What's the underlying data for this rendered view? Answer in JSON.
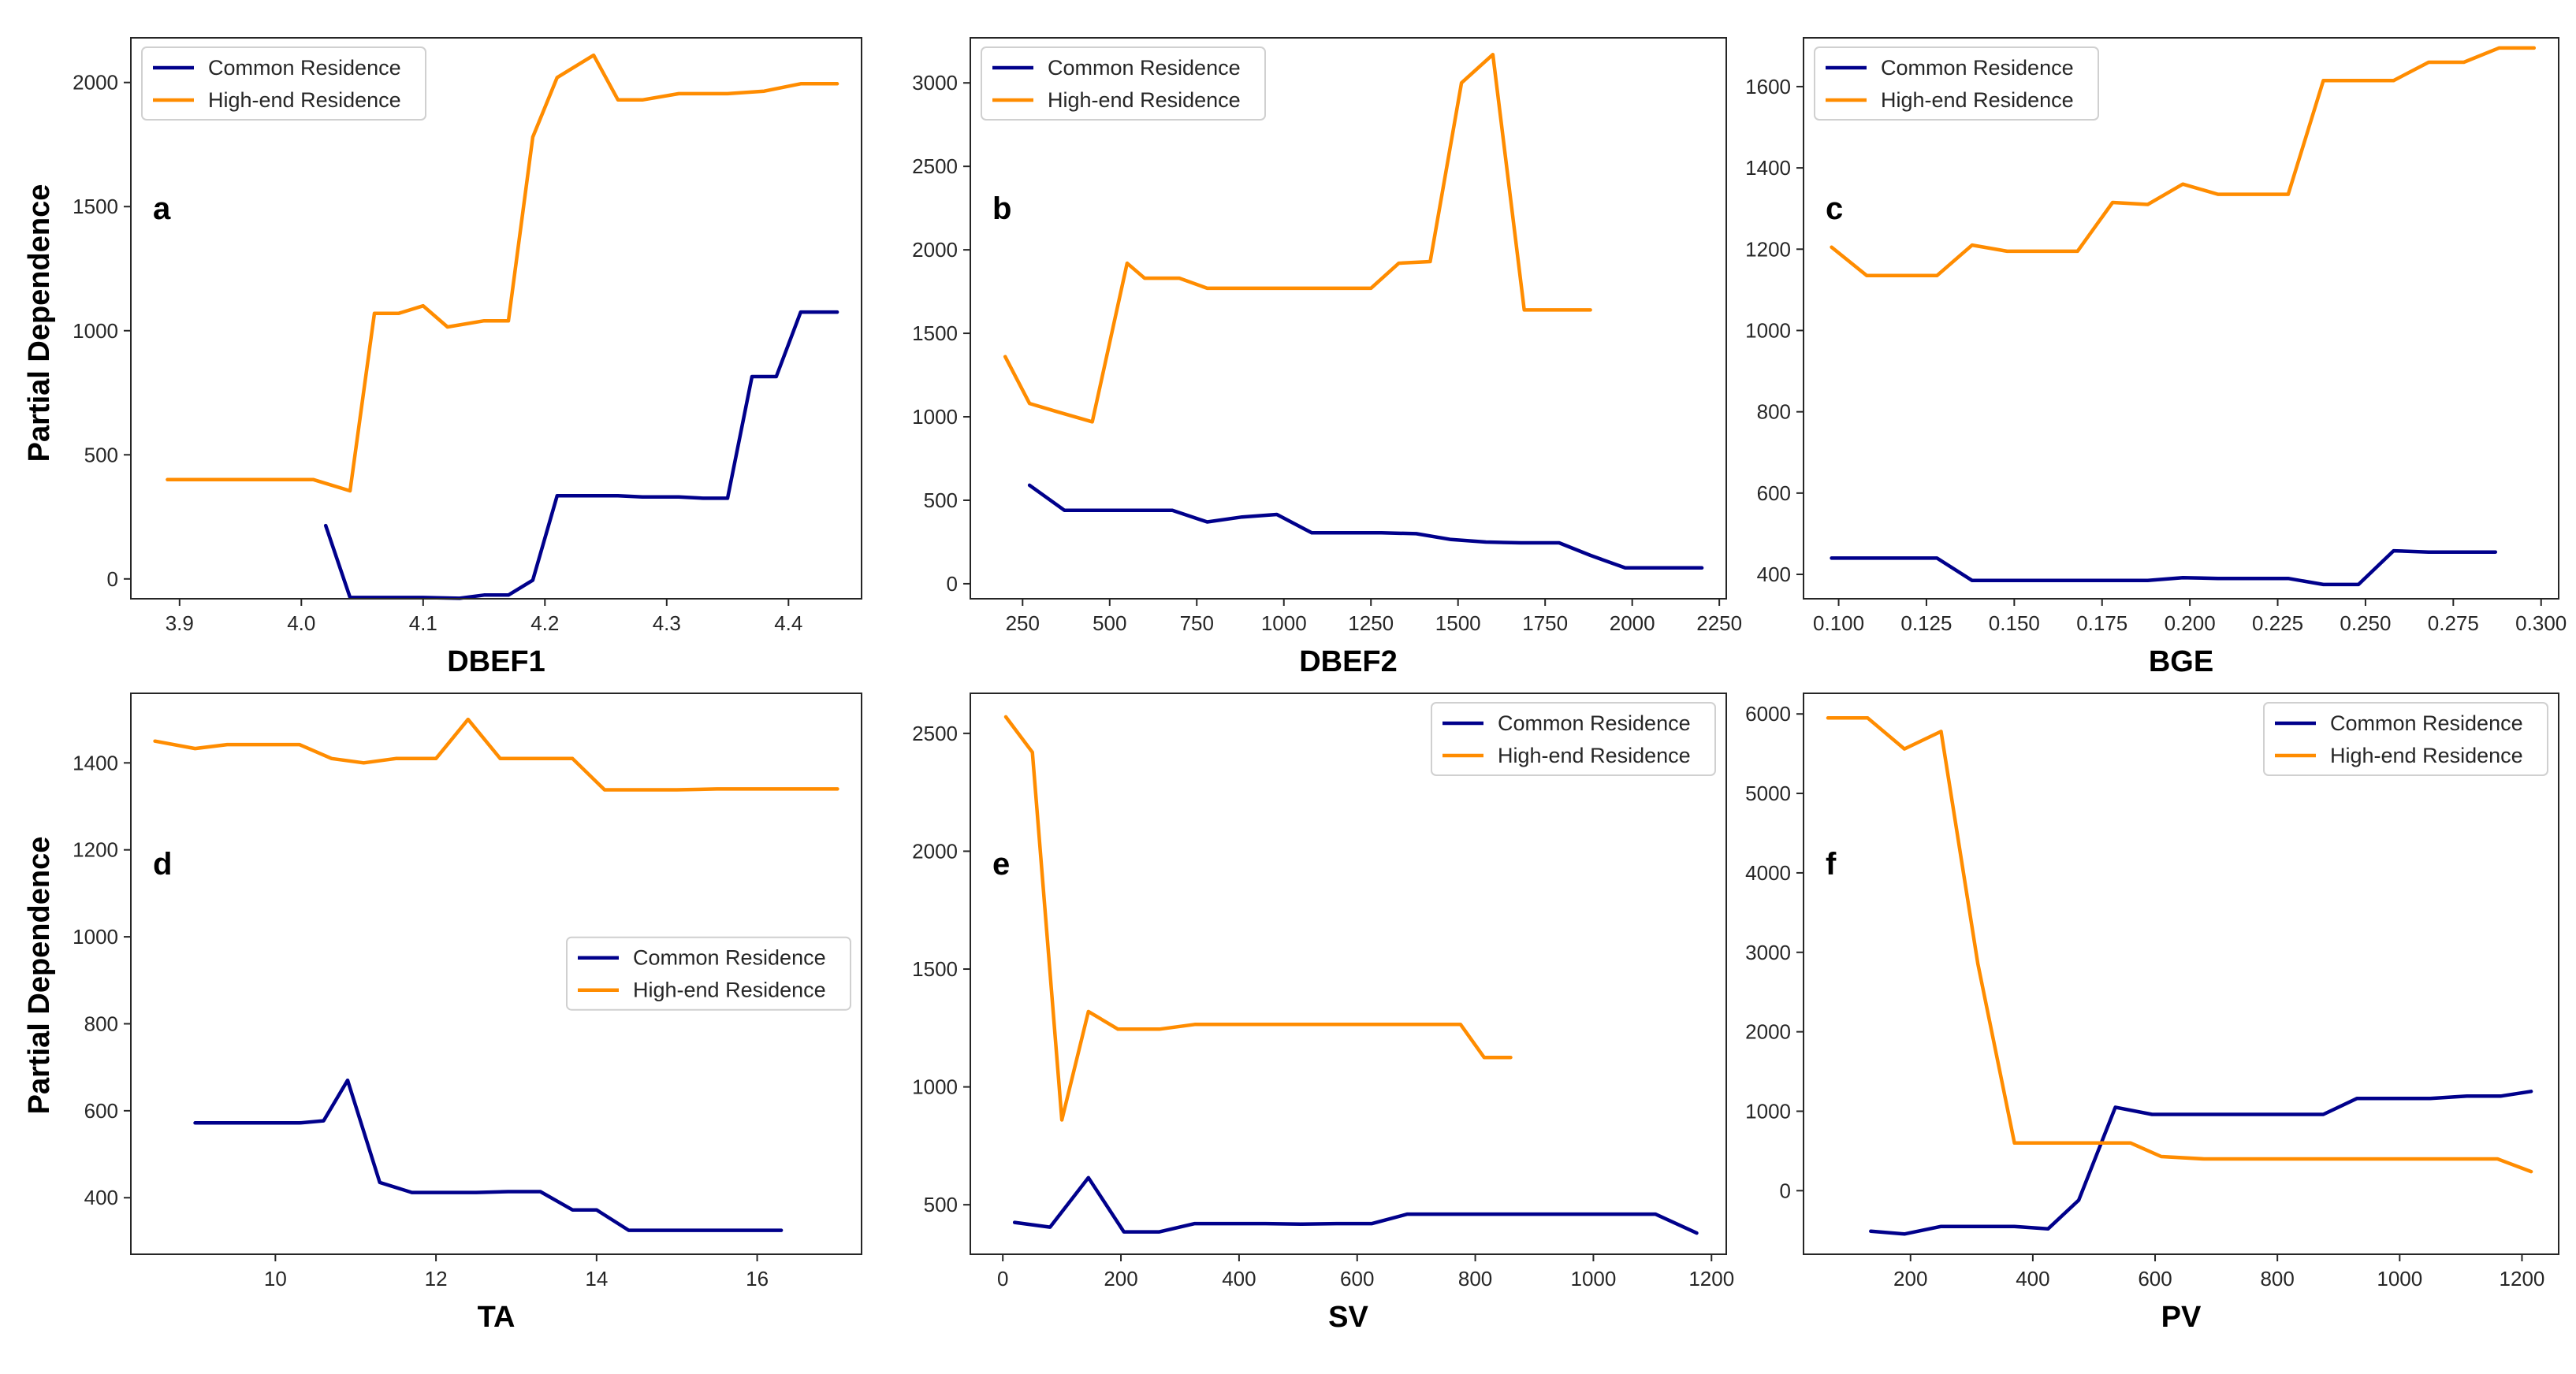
{
  "colors": {
    "common": "#00008b",
    "highend": "#ff8c00",
    "axis": "#262626"
  },
  "ylabel_text": "Partial Dependence",
  "chart_data": [
    {
      "type": "line",
      "panel": "a",
      "xlabel": "DBEF1",
      "ylabel": "Partial Dependence",
      "xlim": [
        3.86,
        4.46
      ],
      "ylim": [
        -80,
        2180
      ],
      "xticks": [
        3.9,
        4.0,
        4.1,
        4.2,
        4.3,
        4.4
      ],
      "xtick_labels": [
        "3.9",
        "4.0",
        "4.1",
        "4.2",
        "4.3",
        "4.4"
      ],
      "yticks": [
        0,
        500,
        1000,
        1500,
        2000
      ],
      "ytick_labels": [
        "0",
        "500",
        "1000",
        "1500",
        "2000"
      ],
      "legend_loc": "upper-left",
      "legend": [
        "Common Residence",
        "High-end Residence"
      ],
      "series": [
        {
          "name": "Common Residence",
          "color": "common",
          "x": [
            4.02,
            4.04,
            4.06,
            4.08,
            4.1,
            4.13,
            4.15,
            4.17,
            4.19,
            4.21,
            4.24,
            4.26,
            4.28,
            4.31,
            4.33,
            4.35,
            4.37,
            4.39,
            4.41,
            4.44
          ],
          "y": [
            215,
            -75,
            -75,
            -75,
            -75,
            -78,
            -65,
            -65,
            -5,
            335,
            335,
            335,
            330,
            330,
            325,
            325,
            815,
            815,
            1075,
            1075
          ]
        },
        {
          "name": "High-end Residence",
          "color": "highend",
          "x": [
            3.89,
            3.94,
            3.97,
            4.0,
            4.01,
            4.04,
            4.06,
            4.08,
            4.1,
            4.12,
            4.15,
            4.17,
            4.19,
            4.21,
            4.24,
            4.26,
            4.28,
            4.31,
            4.33,
            4.35,
            4.38,
            4.41,
            4.44
          ],
          "y": [
            400,
            400,
            400,
            400,
            400,
            355,
            1070,
            1070,
            1100,
            1015,
            1040,
            1040,
            1780,
            2020,
            2110,
            1930,
            1930,
            1955,
            1955,
            1955,
            1965,
            1995,
            1995
          ]
        }
      ]
    },
    {
      "type": "line",
      "panel": "b",
      "xlabel": "DBEF2",
      "ylabel": "",
      "xlim": [
        100,
        2270
      ],
      "ylim": [
        -90,
        3270
      ],
      "xticks": [
        250,
        500,
        750,
        1000,
        1250,
        1500,
        1750,
        2000,
        2250
      ],
      "xtick_labels": [
        "250",
        "500",
        "750",
        "1000",
        "1250",
        "1500",
        "1750",
        "2000",
        "2250"
      ],
      "yticks": [
        0,
        500,
        1000,
        1500,
        2000,
        2500,
        3000
      ],
      "ytick_labels": [
        "0",
        "500",
        "1000",
        "1500",
        "2000",
        "2500",
        "3000"
      ],
      "legend_loc": "upper-left",
      "legend": [
        "Common Residence",
        "High-end Residence"
      ],
      "series": [
        {
          "name": "Common Residence",
          "color": "common",
          "x": [
            270,
            370,
            450,
            550,
            650,
            680,
            780,
            880,
            980,
            1080,
            1180,
            1280,
            1380,
            1480,
            1580,
            1680,
            1790,
            1880,
            1980,
            2090,
            2200
          ],
          "y": [
            590,
            440,
            440,
            440,
            440,
            440,
            370,
            400,
            415,
            305,
            305,
            305,
            300,
            265,
            250,
            245,
            245,
            170,
            95,
            95,
            95
          ]
        },
        {
          "name": "High-end Residence",
          "color": "highend",
          "x": [
            200,
            270,
            350,
            450,
            550,
            600,
            650,
            700,
            780,
            880,
            980,
            1080,
            1180,
            1250,
            1330,
            1420,
            1510,
            1600,
            1690,
            1790,
            1880
          ],
          "y": [
            1360,
            1080,
            1030,
            970,
            1920,
            1830,
            1830,
            1830,
            1770,
            1770,
            1770,
            1770,
            1770,
            1770,
            1920,
            1930,
            3000,
            3170,
            1640,
            1640,
            1640
          ]
        }
      ]
    },
    {
      "type": "line",
      "panel": "c",
      "xlabel": "BGE",
      "ylabel": "",
      "xlim": [
        0.09,
        0.305
      ],
      "ylim": [
        340,
        1720
      ],
      "xticks": [
        0.1,
        0.125,
        0.15,
        0.175,
        0.2,
        0.225,
        0.25,
        0.275,
        0.3
      ],
      "xtick_labels": [
        "0.100",
        "0.125",
        "0.150",
        "0.175",
        "0.200",
        "0.225",
        "0.250",
        "0.275",
        "0.300"
      ],
      "yticks": [
        400,
        600,
        800,
        1000,
        1200,
        1400,
        1600
      ],
      "ytick_labels": [
        "400",
        "600",
        "800",
        "1000",
        "1200",
        "1400",
        "1600"
      ],
      "legend_loc": "upper-left",
      "legend": [
        "Common Residence",
        "High-end Residence"
      ],
      "series": [
        {
          "name": "Common Residence",
          "color": "common",
          "x": [
            0.098,
            0.108,
            0.118,
            0.128,
            0.138,
            0.148,
            0.158,
            0.168,
            0.178,
            0.188,
            0.198,
            0.208,
            0.218,
            0.228,
            0.238,
            0.248,
            0.258,
            0.268,
            0.278,
            0.287
          ],
          "y": [
            440,
            440,
            440,
            440,
            385,
            385,
            385,
            385,
            385,
            385,
            392,
            390,
            390,
            390,
            375,
            375,
            458,
            455,
            455,
            455
          ]
        },
        {
          "name": "High-end Residence",
          "color": "highend",
          "x": [
            0.098,
            0.108,
            0.118,
            0.128,
            0.138,
            0.148,
            0.158,
            0.168,
            0.178,
            0.188,
            0.198,
            0.208,
            0.218,
            0.228,
            0.238,
            0.248,
            0.258,
            0.268,
            0.278,
            0.288,
            0.298
          ],
          "y": [
            1205,
            1135,
            1135,
            1135,
            1210,
            1195,
            1195,
            1195,
            1315,
            1310,
            1360,
            1335,
            1335,
            1335,
            1615,
            1615,
            1615,
            1660,
            1660,
            1695,
            1695
          ]
        }
      ]
    },
    {
      "type": "line",
      "panel": "d",
      "xlabel": "TA",
      "ylabel": "Partial Dependence",
      "xlim": [
        8.2,
        17.3
      ],
      "ylim": [
        270,
        1560
      ],
      "xticks": [
        10,
        12,
        14,
        16
      ],
      "xtick_labels": [
        "10",
        "12",
        "14",
        "16"
      ],
      "yticks": [
        400,
        600,
        800,
        1000,
        1200,
        1400
      ],
      "ytick_labels": [
        "400",
        "600",
        "800",
        "1000",
        "1200",
        "1400"
      ],
      "legend_loc": "center-right",
      "legend": [
        "Common Residence",
        "High-end Residence"
      ],
      "series": [
        {
          "name": "Common Residence",
          "color": "common",
          "x": [
            9.0,
            9.5,
            10.0,
            10.3,
            10.6,
            10.9,
            11.3,
            11.7,
            12.1,
            12.5,
            12.9,
            13.3,
            13.7,
            14.0,
            14.4,
            15.0,
            15.5,
            16.0,
            16.3
          ],
          "y": [
            572,
            572,
            572,
            572,
            577,
            670,
            435,
            412,
            412,
            412,
            414,
            414,
            372,
            372,
            325,
            325,
            325,
            325,
            325
          ]
        },
        {
          "name": "High-end Residence",
          "color": "highend",
          "x": [
            8.5,
            9.0,
            9.4,
            9.8,
            10.3,
            10.7,
            11.1,
            11.5,
            12.0,
            12.4,
            12.8,
            13.2,
            13.7,
            14.1,
            14.5,
            15.0,
            15.5,
            16.0,
            16.5,
            17.0
          ],
          "y": [
            1450,
            1433,
            1442,
            1442,
            1442,
            1410,
            1400,
            1410,
            1410,
            1500,
            1410,
            1410,
            1410,
            1338,
            1338,
            1338,
            1340,
            1340,
            1340,
            1340
          ]
        }
      ]
    },
    {
      "type": "line",
      "panel": "e",
      "xlabel": "SV",
      "ylabel": "",
      "xlim": [
        -55,
        1225
      ],
      "ylim": [
        290,
        2670
      ],
      "xticks": [
        0,
        200,
        400,
        600,
        800,
        1000,
        1200
      ],
      "xtick_labels": [
        "0",
        "200",
        "400",
        "600",
        "800",
        "1000",
        "1200"
      ],
      "yticks": [
        500,
        1000,
        1500,
        2000,
        2500
      ],
      "ytick_labels": [
        "500",
        "1000",
        "1500",
        "2000",
        "2500"
      ],
      "legend_loc": "upper-right",
      "legend": [
        "Common Residence",
        "High-end Residence"
      ],
      "series": [
        {
          "name": "Common Residence",
          "color": "common",
          "x": [
            20,
            80,
            145,
            205,
            265,
            325,
            385,
            445,
            505,
            565,
            625,
            685,
            745,
            805,
            865,
            925,
            985,
            1045,
            1105,
            1175
          ],
          "y": [
            425,
            405,
            615,
            385,
            385,
            420,
            420,
            420,
            418,
            420,
            420,
            460,
            460,
            460,
            460,
            460,
            460,
            460,
            460,
            380
          ]
        },
        {
          "name": "High-end Residence",
          "color": "highend",
          "x": [
            5,
            50,
            100,
            145,
            195,
            265,
            325,
            385,
            445,
            505,
            565,
            625,
            685,
            745,
            775,
            815,
            860
          ],
          "y": [
            2570,
            2420,
            860,
            1320,
            1245,
            1245,
            1265,
            1265,
            1265,
            1265,
            1265,
            1265,
            1265,
            1265,
            1265,
            1125,
            1125
          ]
        }
      ]
    },
    {
      "type": "line",
      "panel": "f",
      "xlabel": "PV",
      "ylabel": "",
      "xlim": [
        25,
        1260
      ],
      "ylim": [
        -800,
        6260
      ],
      "xticks": [
        200,
        400,
        600,
        800,
        1000,
        1200
      ],
      "xtick_labels": [
        "200",
        "400",
        "600",
        "800",
        "1000",
        "1200"
      ],
      "yticks": [
        0,
        1000,
        2000,
        3000,
        4000,
        5000,
        6000
      ],
      "ytick_labels": [
        "0",
        "1000",
        "2000",
        "3000",
        "4000",
        "5000",
        "6000"
      ],
      "legend_loc": "upper-right",
      "legend": [
        "Common Residence",
        "High-end Residence"
      ],
      "series": [
        {
          "name": "Common Residence",
          "color": "common",
          "x": [
            135,
            190,
            250,
            310,
            370,
            425,
            475,
            535,
            595,
            655,
            715,
            775,
            815,
            875,
            930,
            990,
            1050,
            1110,
            1165,
            1215
          ],
          "y": [
            -510,
            -545,
            -450,
            -450,
            -450,
            -480,
            -120,
            1050,
            960,
            960,
            960,
            960,
            960,
            960,
            1160,
            1160,
            1160,
            1190,
            1190,
            1250
          ]
        },
        {
          "name": "High-end Residence",
          "color": "highend",
          "x": [
            65,
            130,
            190,
            250,
            310,
            370,
            430,
            490,
            560,
            610,
            680,
            740,
            800,
            860,
            920,
            980,
            1040,
            1100,
            1160,
            1215
          ],
          "y": [
            5950,
            5950,
            5560,
            5780,
            2860,
            600,
            600,
            600,
            600,
            430,
            400,
            400,
            400,
            400,
            400,
            400,
            400,
            400,
            400,
            240
          ]
        }
      ]
    }
  ]
}
